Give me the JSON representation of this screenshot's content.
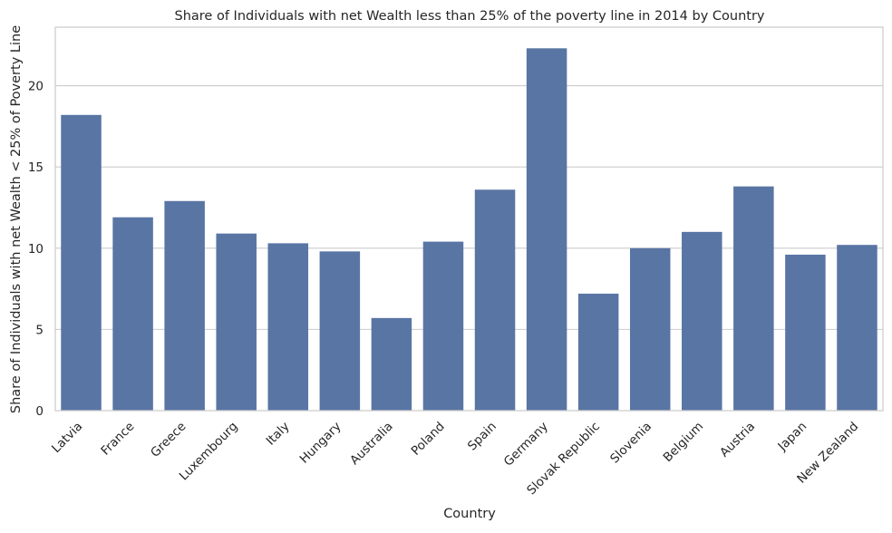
{
  "chart_data": {
    "type": "bar",
    "title": "Share of Individuals with net Wealth less than 25% of the poverty line in 2014 by Country",
    "xlabel": "Country",
    "ylabel": "Share of Individuals with net Wealth < 25% of Poverty Line",
    "categories": [
      "Latvia",
      "France",
      "Greece",
      "Luxembourg",
      "Italy",
      "Hungary",
      "Australia",
      "Poland",
      "Spain",
      "Germany",
      "Slovak Republic",
      "Slovenia",
      "Belgium",
      "Austria",
      "Japan",
      "New Zealand"
    ],
    "values": [
      18.2,
      11.9,
      12.9,
      10.9,
      10.3,
      9.8,
      5.7,
      10.4,
      13.6,
      22.3,
      7.2,
      10.0,
      11.0,
      13.8,
      9.6,
      10.2
    ],
    "ylim": [
      0,
      23.6
    ],
    "yticks": [
      0,
      5,
      10,
      15,
      20
    ],
    "ytick_labels": [
      "0",
      "5",
      "10",
      "15",
      "20"
    ],
    "grid": "horizontal",
    "legend": "none",
    "bar_color": "#5975a4",
    "grid_color": "#cccccc",
    "axes_edge_color": "#cccccc"
  }
}
